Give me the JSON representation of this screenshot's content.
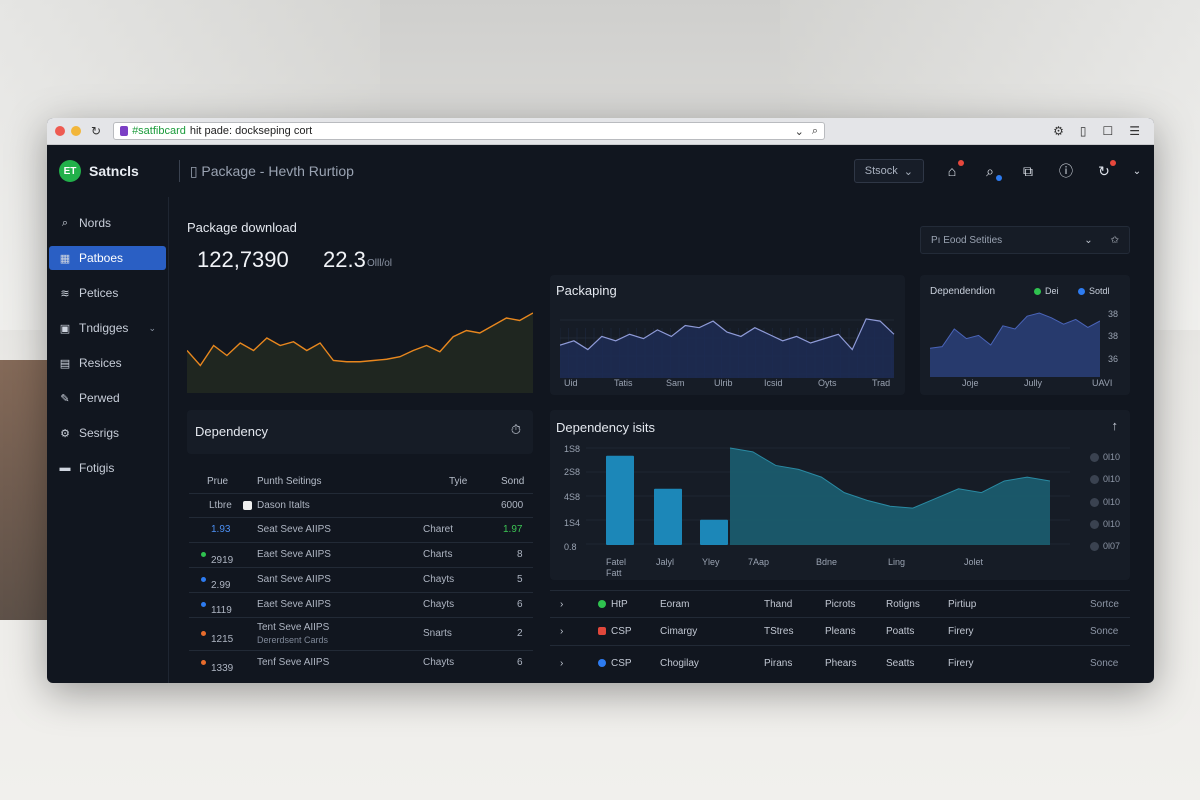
{
  "browser": {
    "url_green": "#satfibcard",
    "url_text": " hit pade: dockseping cort",
    "colors": {
      "close": "#ee5b52",
      "min": "#f2b63a"
    }
  },
  "header": {
    "brand": "Satncls",
    "logo_text": "ET",
    "breadcrumb": "Package - Hevth Rurtiop",
    "search_label": "Stsock"
  },
  "sidebar": {
    "items": [
      {
        "label": "Nords",
        "icon": "search-icon"
      },
      {
        "label": "Patboes",
        "icon": "grid-icon",
        "active": true
      },
      {
        "label": "Petices",
        "icon": "layers-icon"
      },
      {
        "label": "Tndigges",
        "icon": "box-icon"
      },
      {
        "label": "Resices",
        "icon": "list-icon"
      },
      {
        "label": "Perwed",
        "icon": "pen-icon"
      },
      {
        "label": "Sesrigs",
        "icon": "gear-icon"
      },
      {
        "label": "Fotigis",
        "icon": "folder-icon"
      }
    ]
  },
  "kpi": {
    "title": "Package download",
    "value1": "122,7390",
    "value2": "22.3",
    "value2_unit": "Olll/ol"
  },
  "filter": {
    "label": "Pı Eood Setities"
  },
  "packaging": {
    "title": "Packaping",
    "xlabels": [
      "Uid",
      "Tatis",
      "Sam",
      "Ulrib",
      "Icsid",
      "Oyts",
      "Trad"
    ]
  },
  "dependency_mini": {
    "title": "Dependendion",
    "legend": [
      {
        "name": "Dei",
        "color": "#2fc24f"
      },
      {
        "name": "Sotdl",
        "color": "#2d7bf0"
      }
    ],
    "ylabels": [
      "38",
      "38",
      "36",
      "36"
    ],
    "xlabels": [
      "Joje",
      "Jully",
      "UAVI"
    ]
  },
  "dependency_table": {
    "title": "Dependency",
    "columns": [
      "Prue",
      "Punth Seitings",
      "Tyie",
      "Sond"
    ],
    "first_row": {
      "a": "Ltbre",
      "b": "Dason Italts",
      "d": "6000"
    },
    "rows": [
      {
        "id": "1.93",
        "name": "Seat Seve AIIPS",
        "type": "Charet",
        "val": "1.97",
        "dot": "#2d7bf0",
        "green": true
      },
      {
        "id": "2919",
        "name": "Eaet Seve AIIPS",
        "type": "Charts",
        "val": "8",
        "dot": "#2fc24f"
      },
      {
        "id": "2.99",
        "name": "Sant Seve AIIPS",
        "type": "Chayts",
        "val": "5",
        "dot": "#2d7bf0"
      },
      {
        "id": "1119",
        "name": "Eaet Seve AIIPS",
        "type": "Chayts",
        "val": "6",
        "dot": "#2d7bf0"
      },
      {
        "id": "1215",
        "name": "Tent Seve AIIPS",
        "sub": "Dererdsent Cards",
        "type": "Snarts",
        "val": "2",
        "dot": "#e86c2c"
      },
      {
        "id": "1339",
        "name": "Tenf Seve AIIPS",
        "type": "Chayts",
        "val": "6",
        "dot": "#e86c2c"
      }
    ]
  },
  "dependency_chart": {
    "title": "Dependency isits",
    "ylabels": [
      "1S8",
      "2S8",
      "4S8",
      "1S4",
      "0.8"
    ],
    "xlabels": [
      "Fatel\nFatt",
      "Jalyl",
      "Yley",
      "7Aap",
      "Bdne",
      "Ling",
      "Jolet"
    ],
    "legend": [
      "0l10",
      "0l10",
      "0l10",
      "0l10",
      "0l07"
    ]
  },
  "chart_data": [
    {
      "type": "line",
      "title": "Package download",
      "values": [
        34,
        22,
        38,
        30,
        40,
        34,
        44,
        38,
        41,
        34,
        40,
        26,
        25,
        25,
        26,
        27,
        29,
        34,
        38,
        33,
        45,
        50,
        48,
        54,
        60,
        58,
        64
      ],
      "color": "#e8871e"
    },
    {
      "type": "line",
      "title": "Packaping",
      "values": [
        30,
        34,
        26,
        38,
        34,
        40,
        36,
        44,
        38,
        48,
        46,
        52,
        42,
        38,
        46,
        40,
        34,
        38,
        32,
        36,
        40,
        26,
        54,
        52,
        40
      ],
      "color": "#8f9bd8"
    },
    {
      "type": "area",
      "title": "Dependendion",
      "values": [
        36,
        38,
        60,
        48,
        52,
        40,
        64,
        60,
        76,
        80,
        74,
        66,
        72,
        62,
        70
      ],
      "color": "#2a3f7a"
    },
    {
      "type": "bar",
      "title": "Dependency isits",
      "values": [
        92,
        58,
        26
      ],
      "color": "#1c87b8"
    },
    {
      "type": "area",
      "title": "Dependency isits",
      "values": [
        100,
        96,
        82,
        78,
        70,
        54,
        46,
        40,
        38,
        48,
        58,
        54,
        66,
        70,
        66
      ],
      "color": "#1a5b6d"
    }
  ]
}
